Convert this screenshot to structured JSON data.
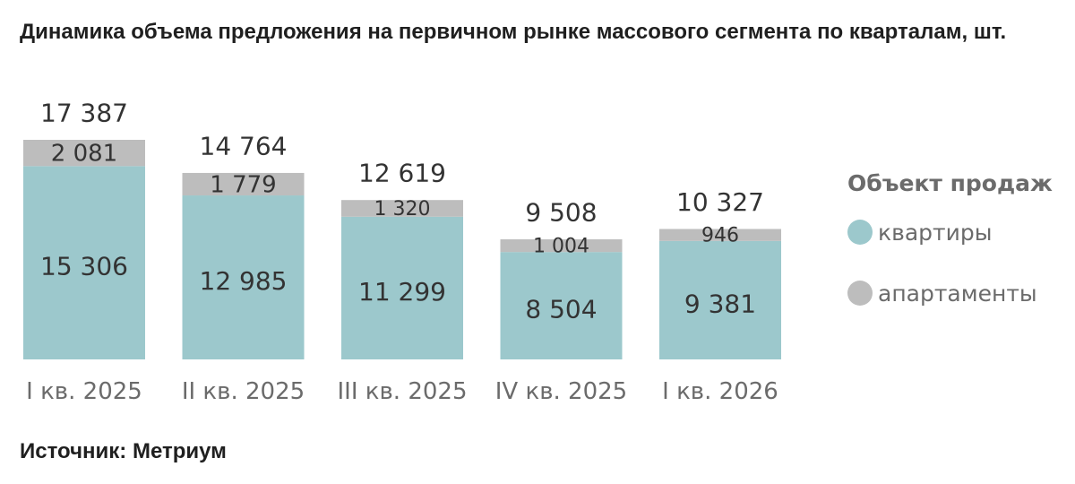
{
  "title": "Динамика объема предложения на первичном рынке массового сегмента по кварталам, шт.",
  "source": "Источник: Метриум",
  "colors": {
    "apartments_flats": "#9cc8cc",
    "apartments_serviced": "#bdbdbd",
    "text": "#333333",
    "axis_text": "#6b6b6b"
  },
  "legend": {
    "title": "Объект продаж",
    "items": [
      {
        "label": "квартиры"
      },
      {
        "label": "апартаменты"
      }
    ]
  },
  "chart_data": {
    "type": "bar",
    "stacked": true,
    "title": "Динамика объема предложения на первичном рынке массового сегмента по кварталам, шт.",
    "categories": [
      "I кв. 2025",
      "II кв. 2025",
      "III кв. 2025",
      "IV кв. 2025",
      "I кв. 2026"
    ],
    "series": [
      {
        "name": "квартиры",
        "values": [
          15306,
          12985,
          11299,
          8504,
          9381
        ],
        "labels": [
          "15 306",
          "12 985",
          "11 299",
          "8 504",
          "9 381"
        ]
      },
      {
        "name": "апартаменты",
        "values": [
          2081,
          1779,
          1320,
          1004,
          946
        ],
        "labels": [
          "2 081",
          "1 779",
          "1 320",
          "1 004",
          "946"
        ]
      }
    ],
    "totals": [
      17387,
      14764,
      12619,
      9508,
      10327
    ],
    "total_labels": [
      "17 387",
      "14 764",
      "12 619",
      "9 508",
      "10 327"
    ],
    "xlabel": "",
    "ylabel": "",
    "ylim": [
      0,
      17387
    ],
    "legend_position": "right"
  }
}
